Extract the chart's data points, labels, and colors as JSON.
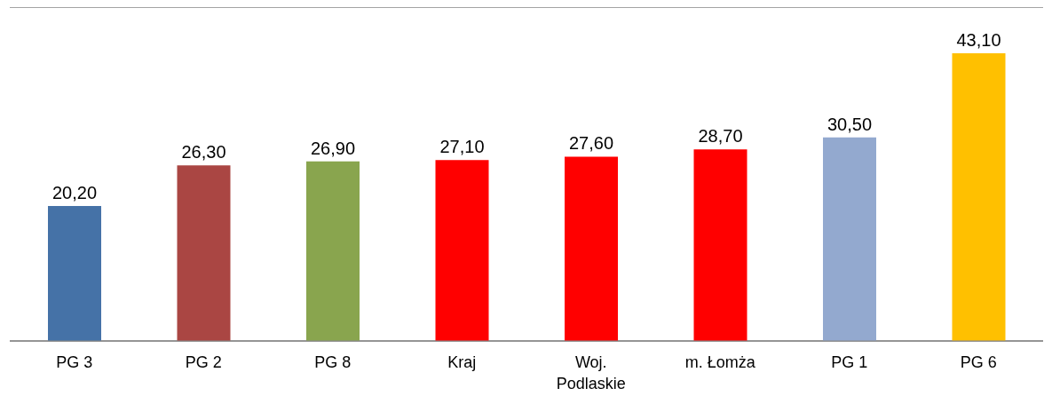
{
  "chart_data": {
    "type": "bar",
    "categories": [
      "PG 3",
      "PG 2",
      "PG 8",
      "Kraj",
      "Woj. Podlaskie",
      "m. Łomża",
      "PG 1",
      "PG 6"
    ],
    "values": [
      20.2,
      26.3,
      26.9,
      27.1,
      27.6,
      28.7,
      30.5,
      43.1
    ],
    "colors": [
      "#4572a7",
      "#aa4643",
      "#89a54e",
      "#ff0000",
      "#ff0000",
      "#ff0000",
      "#93a9cf",
      "#ffc000"
    ],
    "value_labels": [
      "20,20",
      "26,30",
      "26,90",
      "27,10",
      "27,60",
      "28,70",
      "30,50",
      "43,10"
    ],
    "ylim": [
      0,
      50
    ],
    "tick_labels": "x",
    "grid": "y"
  }
}
